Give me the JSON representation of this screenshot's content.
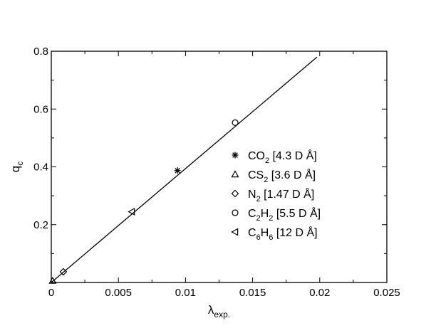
{
  "chart_data": {
    "type": "scatter",
    "xlabel": "λ",
    "xlabel_sub": "exp.",
    "ylabel": "q",
    "ylabel_sub": "c",
    "xlim": [
      0,
      0.025
    ],
    "ylim": [
      0,
      0.8
    ],
    "x_ticks": [
      0,
      0.005,
      0.01,
      0.015,
      0.02,
      0.025
    ],
    "x_tick_labels": [
      "0",
      "0.005",
      "0.01",
      "0.015",
      "0.02",
      "0.025"
    ],
    "y_ticks": [
      0.2,
      0.4,
      0.6,
      0.8
    ],
    "y_tick_labels": [
      "0.2",
      "0.4",
      "0.6",
      "0.8"
    ],
    "legend_position": "right",
    "fit_line": {
      "x": [
        0,
        0.0198
      ],
      "y": [
        0,
        0.78
      ]
    },
    "series": [
      {
        "name": "CO2 [4.3 D Å]",
        "label_parts": [
          "CO",
          "2",
          " [4.3 D Å]"
        ],
        "marker": "asterisk",
        "x": [
          0.0094
        ],
        "y": [
          0.387
        ]
      },
      {
        "name": "CS2 [3.6 D Å]",
        "label_parts": [
          "CS",
          "2",
          " [3.6 D Å]"
        ],
        "marker": "triangle-up",
        "x": [
          0.0001
        ],
        "y": [
          0.006
        ]
      },
      {
        "name": "N2 [1.47 D Å]",
        "label_parts": [
          "N",
          "2",
          " [1.47 D Å]"
        ],
        "marker": "diamond",
        "x": [
          0.0009
        ],
        "y": [
          0.037
        ]
      },
      {
        "name": "C2H2 [5.5 D Å]",
        "label_parts": [
          "C",
          "2",
          "H",
          "2",
          " [5.5 D Å]"
        ],
        "marker": "circle",
        "x": [
          0.0137
        ],
        "y": [
          0.553
        ]
      },
      {
        "name": "C6H6 [12 D Å]",
        "label_parts": [
          "C",
          "6",
          "H",
          "6",
          " [12 D Å]"
        ],
        "marker": "triangle-left",
        "x": [
          0.006
        ],
        "y": [
          0.245
        ]
      }
    ]
  }
}
